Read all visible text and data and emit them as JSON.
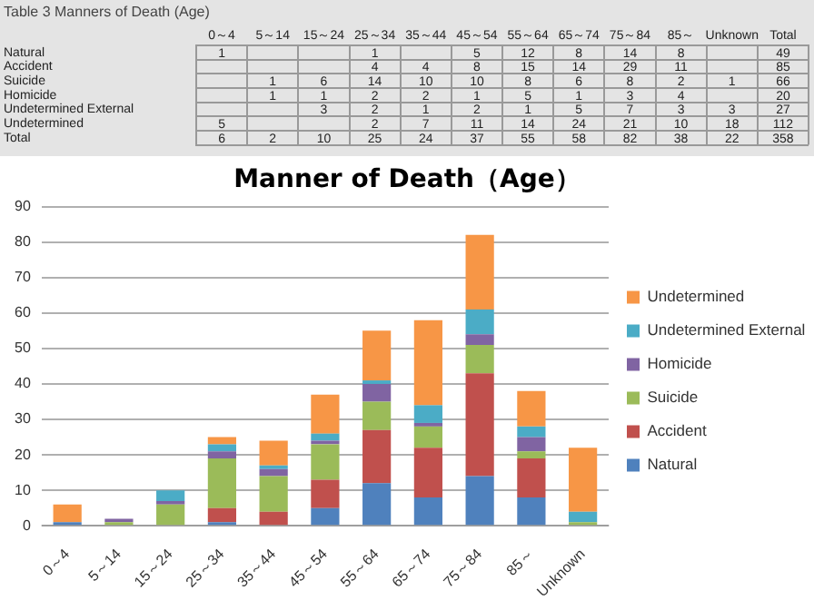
{
  "chart_data": [
    {
      "type": "heatmap",
      "title": "Table 3 Manners of Death (Age)",
      "data_labels": true,
      "categories": [
        "0～4",
        "5～14",
        "15～24",
        "25～34",
        "35～44",
        "45～54",
        "55～64",
        "65～74",
        "75～84",
        "85～",
        "Unknown",
        "Total"
      ],
      "y_categories": [
        "Natural",
        "Accident",
        "Suicide",
        "Homicide",
        "Undetermined External",
        "Undetermined",
        "Total"
      ],
      "cells": [
        [
          1,
          null,
          null,
          1,
          null,
          5,
          12,
          8,
          14,
          8,
          null,
          49
        ],
        [
          null,
          null,
          null,
          4,
          4,
          8,
          15,
          14,
          29,
          11,
          null,
          85
        ],
        [
          null,
          1,
          6,
          14,
          10,
          10,
          8,
          6,
          8,
          2,
          1,
          66
        ],
        [
          null,
          1,
          1,
          2,
          2,
          1,
          5,
          1,
          3,
          4,
          null,
          20
        ],
        [
          null,
          null,
          3,
          2,
          1,
          2,
          1,
          5,
          7,
          3,
          3,
          27
        ],
        [
          5,
          null,
          null,
          2,
          7,
          11,
          14,
          24,
          21,
          10,
          18,
          112
        ],
        [
          6,
          2,
          10,
          25,
          24,
          37,
          55,
          58,
          82,
          38,
          22,
          358
        ]
      ]
    },
    {
      "type": "bar",
      "title": "Manner of Death（Age）",
      "stacked": true,
      "categories": [
        "0～4",
        "5～14",
        "15～24",
        "25～34",
        "35～44",
        "45～54",
        "55～64",
        "65～74",
        "75～84",
        "85～",
        "Unknown"
      ],
      "series": [
        {
          "name": "Natural",
          "color": "#4f81bd",
          "values": [
            1,
            null,
            null,
            1,
            null,
            5,
            12,
            8,
            14,
            8,
            null
          ]
        },
        {
          "name": "Accident",
          "color": "#c0504d",
          "values": [
            null,
            null,
            null,
            4,
            4,
            8,
            15,
            14,
            29,
            11,
            null
          ]
        },
        {
          "name": "Suicide",
          "color": "#9bbb59",
          "values": [
            null,
            1,
            6,
            14,
            10,
            10,
            8,
            6,
            8,
            2,
            1
          ]
        },
        {
          "name": "Homicide",
          "color": "#8064a2",
          "values": [
            null,
            1,
            1,
            2,
            2,
            1,
            5,
            1,
            3,
            4,
            null
          ]
        },
        {
          "name": "Undetermined External",
          "color": "#4bacc6",
          "values": [
            null,
            null,
            3,
            2,
            1,
            2,
            1,
            5,
            7,
            3,
            3
          ]
        },
        {
          "name": "Undetermined",
          "color": "#f79646",
          "values": [
            5,
            null,
            null,
            2,
            7,
            11,
            14,
            24,
            21,
            10,
            18
          ]
        }
      ],
      "ylim": [
        0,
        90
      ],
      "yticks": [
        0,
        10,
        20,
        30,
        40,
        50,
        60,
        70,
        80,
        90
      ],
      "grid": "y",
      "legend": "right"
    }
  ]
}
